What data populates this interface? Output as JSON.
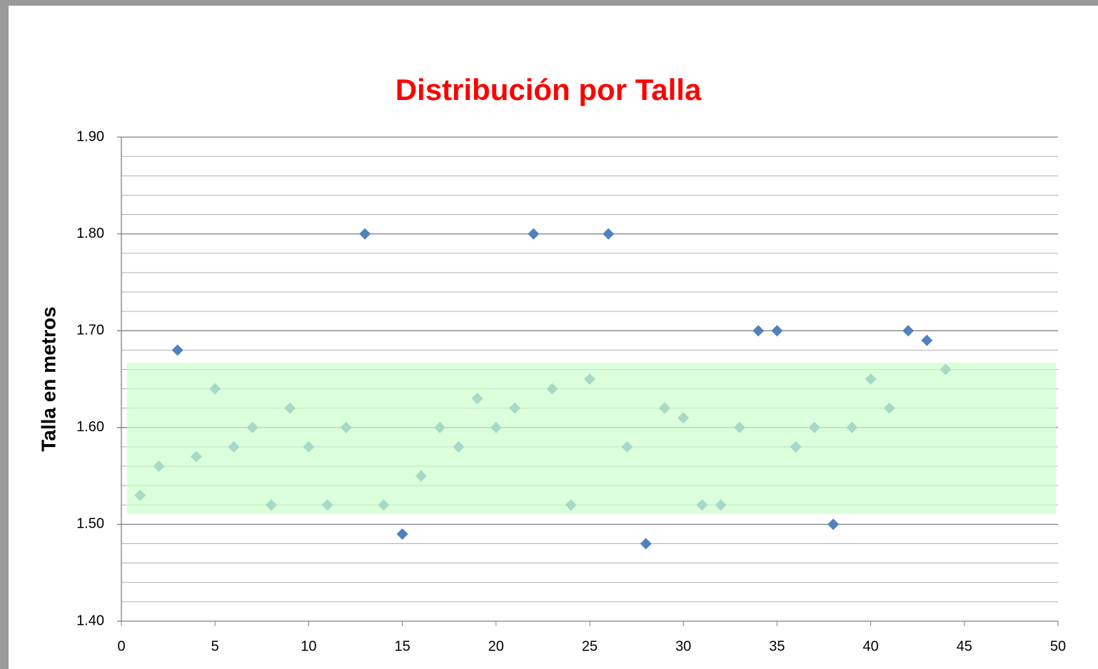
{
  "chart_data": {
    "type": "scatter",
    "title": "Distribución por Talla",
    "y_label": "Talla en metros",
    "series": [
      {
        "color": "#4f81bd",
        "x": [
          1,
          2,
          3,
          4,
          5,
          6,
          7,
          8,
          9,
          10,
          11,
          12,
          13,
          14,
          15,
          16,
          17,
          18,
          19,
          20,
          21,
          22,
          23,
          24,
          25,
          26,
          27,
          28,
          29,
          30,
          31,
          32,
          33,
          34,
          35,
          36,
          37,
          38,
          39,
          40,
          41,
          42,
          43,
          44
        ],
        "values": [
          1.53,
          1.56,
          1.68,
          1.57,
          1.64,
          1.58,
          1.6,
          1.52,
          1.62,
          1.58,
          1.52,
          1.6,
          1.8,
          1.52,
          1.49,
          1.55,
          1.6,
          1.58,
          1.63,
          1.6,
          1.62,
          1.8,
          1.64,
          1.52,
          1.65,
          1.8,
          1.58,
          1.48,
          1.62,
          1.61,
          1.52,
          1.52,
          1.6,
          1.7,
          1.7,
          1.58,
          1.6,
          1.5,
          1.6,
          1.65,
          1.62,
          1.7,
          1.69,
          1.66
        ]
      }
    ],
    "band": {
      "ylim": [
        1.511,
        1.667
      ],
      "xlim": [
        0.3,
        49.9
      ],
      "color": "#ccffcc"
    },
    "xlim": [
      0,
      50
    ],
    "xticks": [
      0,
      5,
      10,
      15,
      20,
      25,
      30,
      35,
      40,
      45,
      50
    ],
    "ylim": [
      1.4,
      1.9
    ],
    "yticks": [
      {
        "value": 1.4,
        "label": "1.40"
      },
      {
        "value": 1.5,
        "label": "1.50"
      },
      {
        "value": 1.6,
        "label": "1.60"
      },
      {
        "value": 1.7,
        "label": "1.70"
      },
      {
        "value": 1.8,
        "label": "1.80"
      },
      {
        "value": 1.9,
        "label": "1.90"
      }
    ],
    "minor_yticks": [
      1.42,
      1.44,
      1.46,
      1.48,
      1.52,
      1.54,
      1.56,
      1.58,
      1.62,
      1.64,
      1.66,
      1.68,
      1.72,
      1.74,
      1.76,
      1.78,
      1.82,
      1.84,
      1.86,
      1.88
    ],
    "grid": true
  }
}
